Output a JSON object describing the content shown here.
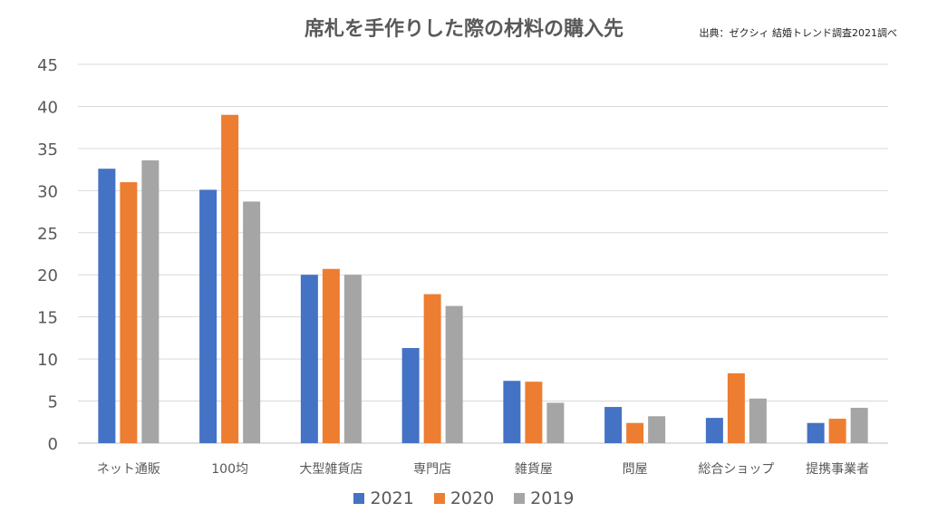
{
  "chart_data": {
    "type": "bar",
    "title": "席札を手作りした際の材料の購入先",
    "source": "出典：ゼクシィ 結婚トレンド調査2021調べ",
    "categories": [
      "ネット通販",
      "100均",
      "大型雑貨店",
      "専門店",
      "雑貨屋",
      "問屋",
      "総合ショップ",
      "提携事業者"
    ],
    "series": [
      {
        "name": "2021",
        "color": "#4472C4",
        "values": [
          32.6,
          30.1,
          20.0,
          11.3,
          7.4,
          4.3,
          3.0,
          2.4
        ]
      },
      {
        "name": "2020",
        "color": "#ED7D31",
        "values": [
          31.0,
          39.0,
          20.7,
          17.7,
          7.3,
          2.4,
          8.3,
          2.9
        ]
      },
      {
        "name": "2019",
        "color": "#A5A5A5",
        "values": [
          33.6,
          28.7,
          20.0,
          16.3,
          4.8,
          3.2,
          5.3,
          4.2
        ]
      }
    ],
    "yticks": [
      "0",
      "5",
      "10",
      "15",
      "20",
      "25",
      "30",
      "35",
      "40",
      "45"
    ],
    "ylim": [
      0,
      45
    ],
    "grid": true,
    "legend_position": "bottom"
  }
}
